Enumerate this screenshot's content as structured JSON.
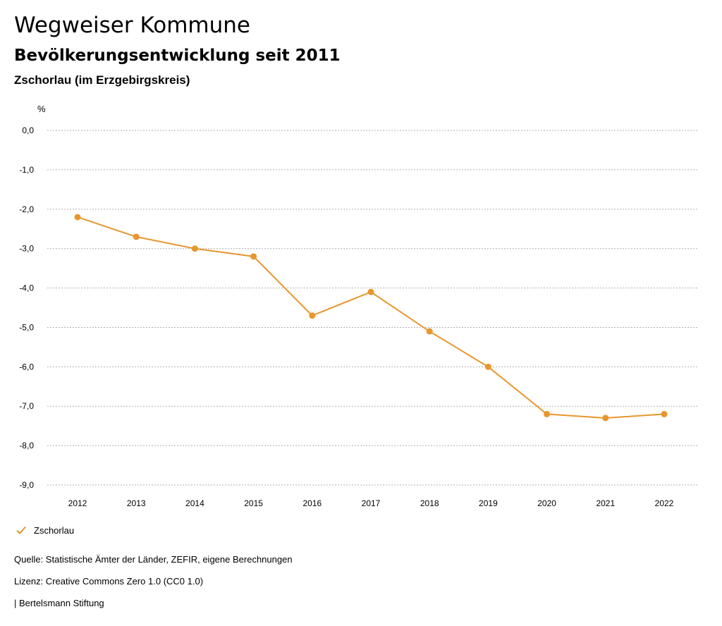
{
  "header": {
    "title": "Wegweiser Kommune",
    "subtitle": "Bevölkerungsentwicklung seit 2011",
    "region": "Zschorlau (im Erzgebirgskreis)"
  },
  "chart_data": {
    "type": "line",
    "ylabel": "%",
    "xlabel": "",
    "categories": [
      "2012",
      "2013",
      "2014",
      "2015",
      "2016",
      "2017",
      "2018",
      "2019",
      "2020",
      "2021",
      "2022"
    ],
    "series": [
      {
        "name": "Zschorlau",
        "color": "#e8962e",
        "values": [
          -2.2,
          -2.7,
          -3.0,
          -3.2,
          -4.7,
          -4.1,
          -5.1,
          -6.0,
          -7.2,
          -7.3,
          -7.2
        ]
      }
    ],
    "ylim": [
      -9,
      0
    ],
    "yticks": [
      0,
      -1,
      -2,
      -3,
      -4,
      -5,
      -6,
      -7,
      -8,
      -9
    ],
    "ytick_labels": [
      "0,0",
      "-1,0",
      "-2,0",
      "-3,0",
      "-4,0",
      "-5,0",
      "-6,0",
      "-7,0",
      "-8,0",
      "-9,0"
    ],
    "grid": true,
    "legend_position": "bottom-left"
  },
  "legend": {
    "label": "Zschorlau",
    "icon": "check-icon"
  },
  "footer": {
    "source": "Quelle: Statistische Ämter der Länder, ZEFIR, eigene Berechnungen",
    "license": "Lizenz: Creative Commons Zero 1.0 (CC0 1.0)",
    "brand": "| Bertelsmann Stiftung"
  }
}
